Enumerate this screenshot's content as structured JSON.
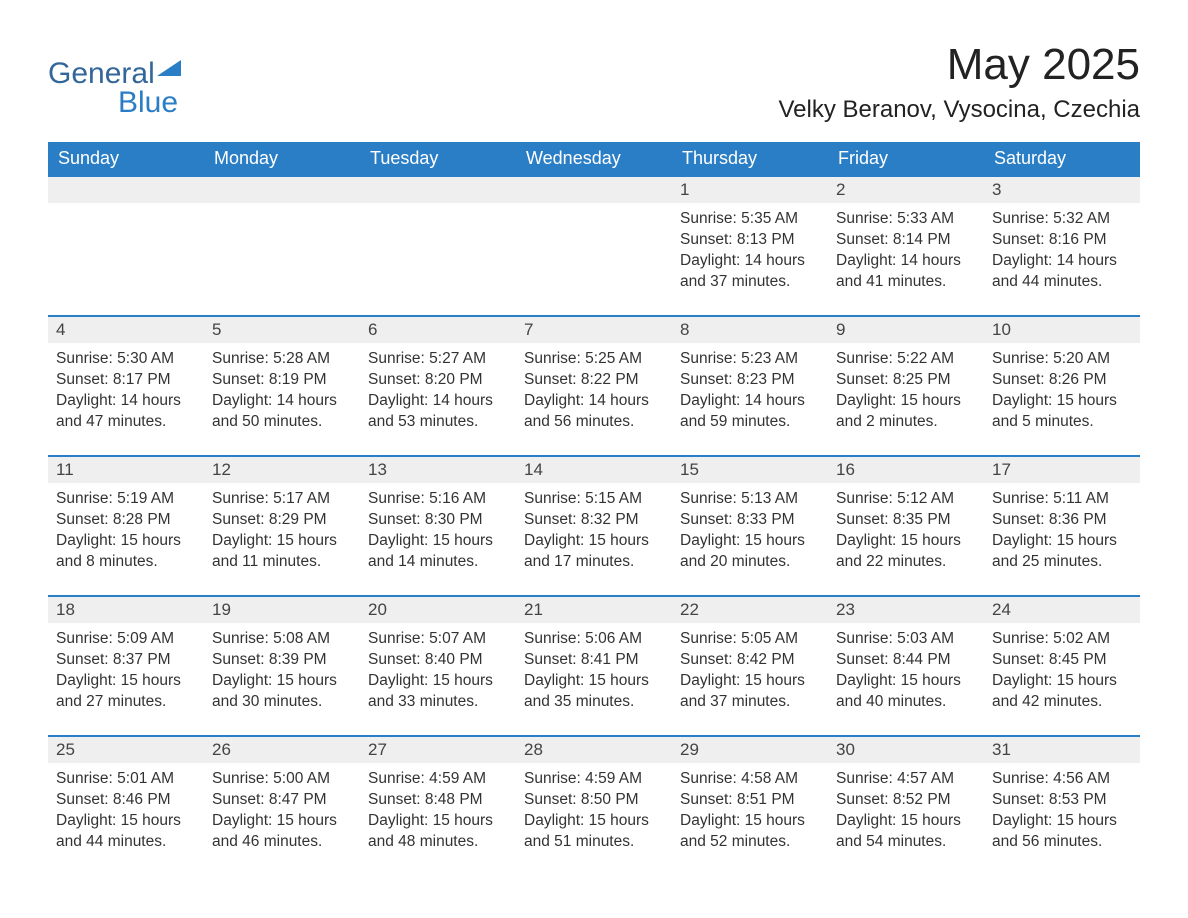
{
  "logo": {
    "word1": "General",
    "word2": "Blue"
  },
  "title": "May 2025",
  "location": "Velky Beranov, Vysocina, Czechia",
  "colors": {
    "header_bg": "#2a7ec6",
    "header_text": "#ffffff",
    "row_border": "#2a7ec6",
    "daynum_bg": "#efefef",
    "text": "#333333",
    "logo_general": "#336699",
    "logo_blue": "#2a7ec6",
    "background": "#ffffff"
  },
  "font": {
    "family": "Arial",
    "title_size_pt": 33,
    "location_size_pt": 18,
    "header_size_pt": 13.5,
    "daynum_size_pt": 12.5,
    "body_size_pt": 11.5
  },
  "day_headers": [
    "Sunday",
    "Monday",
    "Tuesday",
    "Wednesday",
    "Thursday",
    "Friday",
    "Saturday"
  ],
  "weeks": [
    [
      null,
      null,
      null,
      null,
      {
        "n": "1",
        "sunrise": "5:35 AM",
        "sunset": "8:13 PM",
        "daylight": "14 hours and 37 minutes."
      },
      {
        "n": "2",
        "sunrise": "5:33 AM",
        "sunset": "8:14 PM",
        "daylight": "14 hours and 41 minutes."
      },
      {
        "n": "3",
        "sunrise": "5:32 AM",
        "sunset": "8:16 PM",
        "daylight": "14 hours and 44 minutes."
      }
    ],
    [
      {
        "n": "4",
        "sunrise": "5:30 AM",
        "sunset": "8:17 PM",
        "daylight": "14 hours and 47 minutes."
      },
      {
        "n": "5",
        "sunrise": "5:28 AM",
        "sunset": "8:19 PM",
        "daylight": "14 hours and 50 minutes."
      },
      {
        "n": "6",
        "sunrise": "5:27 AM",
        "sunset": "8:20 PM",
        "daylight": "14 hours and 53 minutes."
      },
      {
        "n": "7",
        "sunrise": "5:25 AM",
        "sunset": "8:22 PM",
        "daylight": "14 hours and 56 minutes."
      },
      {
        "n": "8",
        "sunrise": "5:23 AM",
        "sunset": "8:23 PM",
        "daylight": "14 hours and 59 minutes."
      },
      {
        "n": "9",
        "sunrise": "5:22 AM",
        "sunset": "8:25 PM",
        "daylight": "15 hours and 2 minutes."
      },
      {
        "n": "10",
        "sunrise": "5:20 AM",
        "sunset": "8:26 PM",
        "daylight": "15 hours and 5 minutes."
      }
    ],
    [
      {
        "n": "11",
        "sunrise": "5:19 AM",
        "sunset": "8:28 PM",
        "daylight": "15 hours and 8 minutes."
      },
      {
        "n": "12",
        "sunrise": "5:17 AM",
        "sunset": "8:29 PM",
        "daylight": "15 hours and 11 minutes."
      },
      {
        "n": "13",
        "sunrise": "5:16 AM",
        "sunset": "8:30 PM",
        "daylight": "15 hours and 14 minutes."
      },
      {
        "n": "14",
        "sunrise": "5:15 AM",
        "sunset": "8:32 PM",
        "daylight": "15 hours and 17 minutes."
      },
      {
        "n": "15",
        "sunrise": "5:13 AM",
        "sunset": "8:33 PM",
        "daylight": "15 hours and 20 minutes."
      },
      {
        "n": "16",
        "sunrise": "5:12 AM",
        "sunset": "8:35 PM",
        "daylight": "15 hours and 22 minutes."
      },
      {
        "n": "17",
        "sunrise": "5:11 AM",
        "sunset": "8:36 PM",
        "daylight": "15 hours and 25 minutes."
      }
    ],
    [
      {
        "n": "18",
        "sunrise": "5:09 AM",
        "sunset": "8:37 PM",
        "daylight": "15 hours and 27 minutes."
      },
      {
        "n": "19",
        "sunrise": "5:08 AM",
        "sunset": "8:39 PM",
        "daylight": "15 hours and 30 minutes."
      },
      {
        "n": "20",
        "sunrise": "5:07 AM",
        "sunset": "8:40 PM",
        "daylight": "15 hours and 33 minutes."
      },
      {
        "n": "21",
        "sunrise": "5:06 AM",
        "sunset": "8:41 PM",
        "daylight": "15 hours and 35 minutes."
      },
      {
        "n": "22",
        "sunrise": "5:05 AM",
        "sunset": "8:42 PM",
        "daylight": "15 hours and 37 minutes."
      },
      {
        "n": "23",
        "sunrise": "5:03 AM",
        "sunset": "8:44 PM",
        "daylight": "15 hours and 40 minutes."
      },
      {
        "n": "24",
        "sunrise": "5:02 AM",
        "sunset": "8:45 PM",
        "daylight": "15 hours and 42 minutes."
      }
    ],
    [
      {
        "n": "25",
        "sunrise": "5:01 AM",
        "sunset": "8:46 PM",
        "daylight": "15 hours and 44 minutes."
      },
      {
        "n": "26",
        "sunrise": "5:00 AM",
        "sunset": "8:47 PM",
        "daylight": "15 hours and 46 minutes."
      },
      {
        "n": "27",
        "sunrise": "4:59 AM",
        "sunset": "8:48 PM",
        "daylight": "15 hours and 48 minutes."
      },
      {
        "n": "28",
        "sunrise": "4:59 AM",
        "sunset": "8:50 PM",
        "daylight": "15 hours and 51 minutes."
      },
      {
        "n": "29",
        "sunrise": "4:58 AM",
        "sunset": "8:51 PM",
        "daylight": "15 hours and 52 minutes."
      },
      {
        "n": "30",
        "sunrise": "4:57 AM",
        "sunset": "8:52 PM",
        "daylight": "15 hours and 54 minutes."
      },
      {
        "n": "31",
        "sunrise": "4:56 AM",
        "sunset": "8:53 PM",
        "daylight": "15 hours and 56 minutes."
      }
    ]
  ],
  "labels": {
    "sunrise": "Sunrise:",
    "sunset": "Sunset:",
    "daylight": "Daylight:"
  }
}
